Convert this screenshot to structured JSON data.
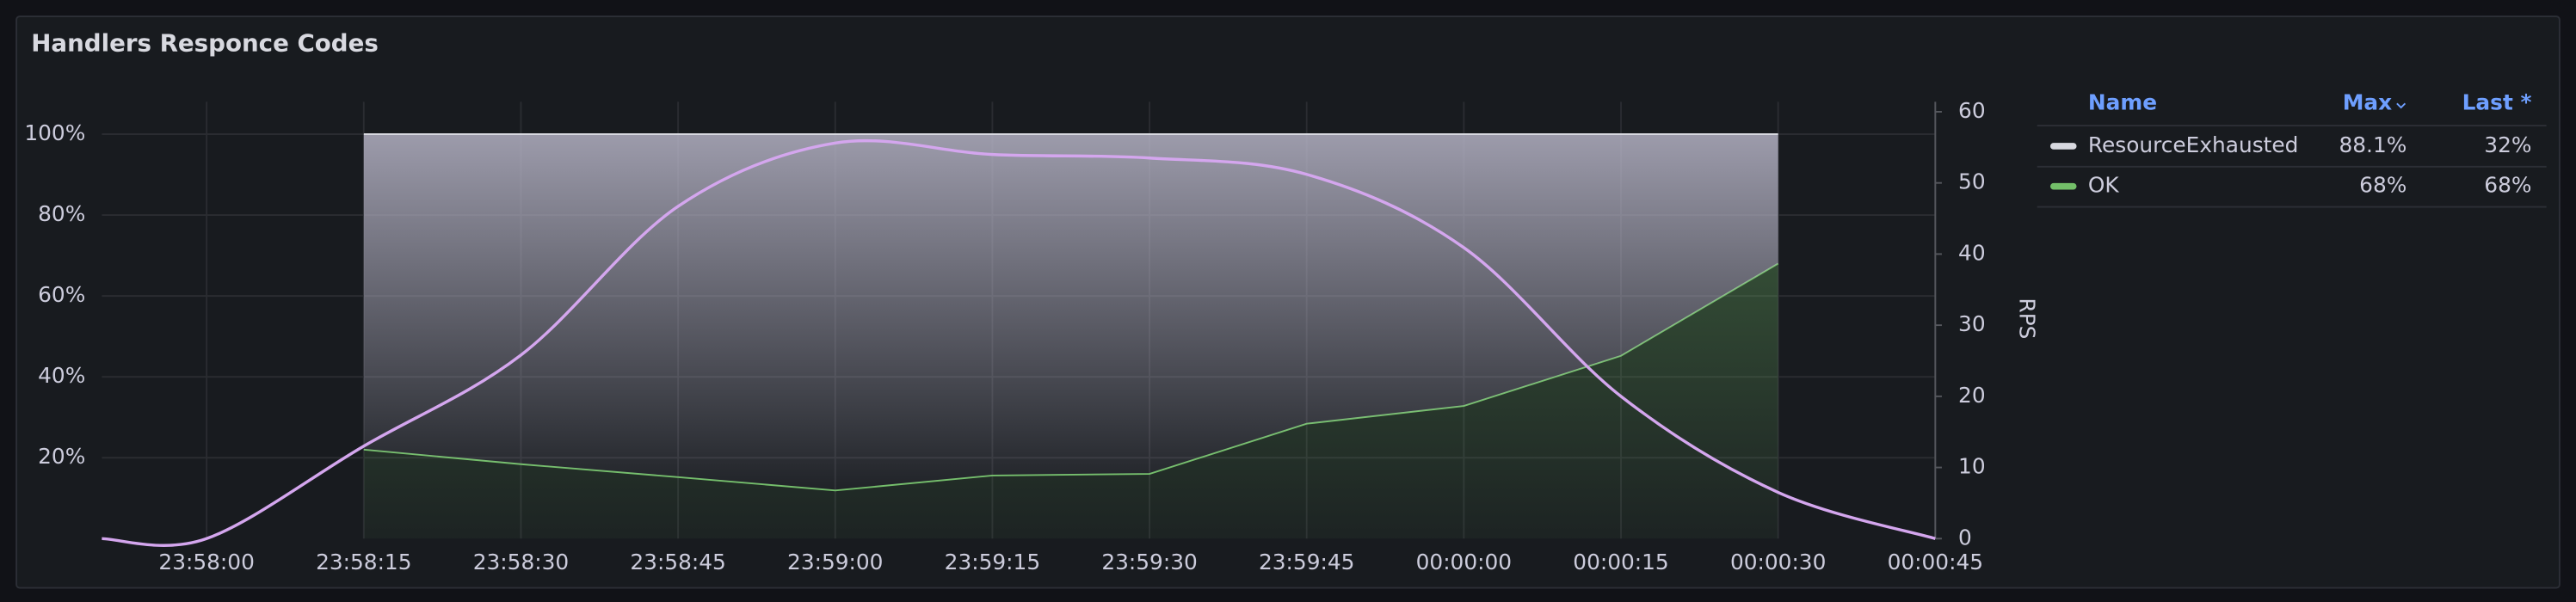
{
  "chart_data": {
    "type": "line",
    "title": "Handlers Responce Codes",
    "stacked": true,
    "xlim": [
      "23:57:50",
      "00:00:45"
    ],
    "xticks": [
      "23:58:00",
      "23:58:15",
      "23:58:30",
      "23:58:45",
      "23:59:00",
      "23:59:15",
      "23:59:30",
      "23:59:45",
      "00:00:00",
      "00:00:15",
      "00:00:30",
      "00:00:45"
    ],
    "ylim": [
      0,
      108
    ],
    "yticks": [
      {
        "value": 20,
        "label": "20%"
      },
      {
        "value": 40,
        "label": "40%"
      },
      {
        "value": 60,
        "label": "60%"
      },
      {
        "value": 80,
        "label": "80%"
      },
      {
        "value": 100,
        "label": "100%"
      }
    ],
    "y2lim": [
      0,
      61.4
    ],
    "y2ticks": [
      0,
      10,
      20,
      30,
      40,
      50,
      60
    ],
    "y2label": "RPS",
    "grid": true,
    "series": [
      {
        "name": "ResourceExhausted",
        "color": "#d8d9e0",
        "x": [
          "23:58:15",
          "23:58:30",
          "23:58:45",
          "23:59:00",
          "23:59:15",
          "23:59:30",
          "23:59:45",
          "00:00:00",
          "00:00:15",
          "00:00:30"
        ],
        "values": [
          78,
          81.6,
          84.8,
          88.1,
          84.4,
          84,
          71.6,
          67.2,
          54.8,
          32
        ]
      },
      {
        "name": "OK",
        "color": "#73bf69",
        "x": [
          "23:58:15",
          "23:58:30",
          "23:58:45",
          "23:59:00",
          "23:59:15",
          "23:59:30",
          "23:59:45",
          "00:00:00",
          "00:00:15",
          "00:00:30"
        ],
        "values": [
          22,
          18.4,
          15.2,
          11.9,
          15.6,
          16,
          28.4,
          32.8,
          45.2,
          68
        ]
      },
      {
        "color": "#d4a6ee",
        "axis": "y2",
        "smooth": true,
        "x": [
          "23:57:50",
          "23:58:00",
          "23:58:15",
          "23:58:30",
          "23:58:45",
          "23:59:00",
          "23:59:15",
          "23:59:30",
          "23:59:45",
          "00:00:00",
          "00:00:15",
          "00:00:30",
          "00:00:45"
        ],
        "values": [
          0,
          0,
          13,
          25.8,
          46.7,
          55.6,
          54,
          53.5,
          51.2,
          40.9,
          20,
          6.5,
          0
        ]
      }
    ],
    "legend_columns": [
      "Name",
      "Max",
      "Last *"
    ],
    "legend_stats": [
      [
        "88.1%",
        "32%"
      ],
      [
        "68%",
        "68%"
      ]
    ]
  }
}
